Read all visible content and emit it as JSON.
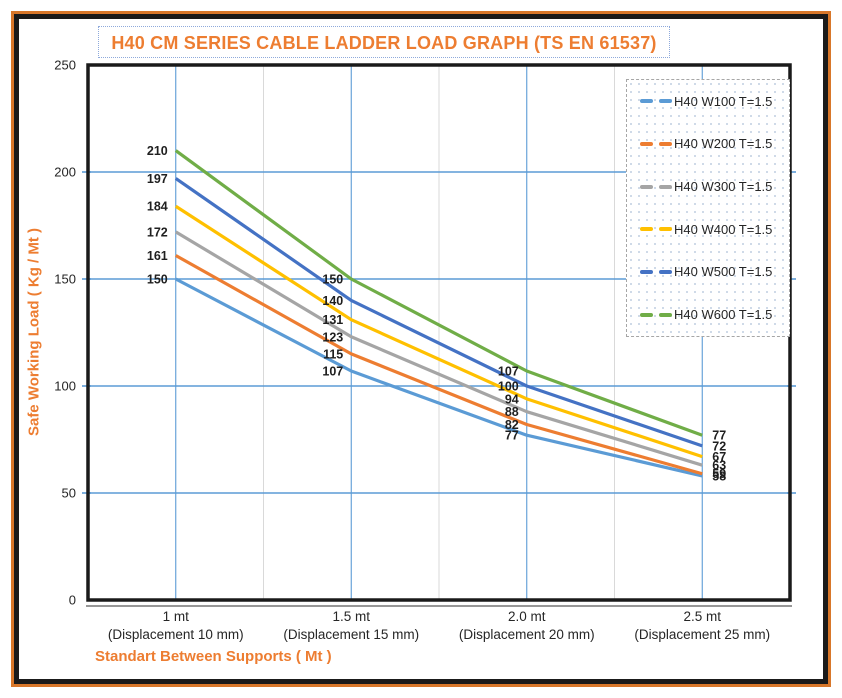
{
  "title": "H40 CM SERIES CABLE LADDER LOAD GRAPH (TS EN 61537)",
  "colors": {
    "accent": "#ED7D31",
    "grid_blue": "#5B9BD5",
    "minor_grid": "#D9D9D9",
    "frame_orange": "#D8772A",
    "frame_black": "#1A1A1A",
    "text": "#262626"
  },
  "chart_data": {
    "type": "line",
    "title": "H40 CM SERIES CABLE LADDER LOAD GRAPH (TS EN 61537)",
    "xlabel": "Standart Between Supports ( Mt )",
    "ylabel": "Safe Working Load ( Kg / Mt )",
    "categories": [
      "1 mt",
      "1.5 mt",
      "2.0 mt",
      "2.5 mt"
    ],
    "category_sublabels": [
      "(Displacement 10 mm)",
      "(Displacement 15 mm)",
      "(Displacement 20 mm)",
      "(Displacement 25 mm)"
    ],
    "ylim": [
      0,
      250
    ],
    "yticks": [
      0,
      50,
      100,
      150,
      200,
      250
    ],
    "grid": true,
    "legend_position": "top-right",
    "data_labels": true,
    "series": [
      {
        "name": "H40 W100 T=1.5",
        "color": "#5B9BD5",
        "values": [
          150,
          107,
          77,
          58
        ]
      },
      {
        "name": "H40 W200 T=1.5",
        "color": "#ED7D31",
        "values": [
          161,
          115,
          82,
          59
        ]
      },
      {
        "name": "H40 W300 T=1.5",
        "color": "#A5A5A5",
        "values": [
          172,
          123,
          88,
          63
        ]
      },
      {
        "name": "H40 W400 T=1.5",
        "color": "#FFC000",
        "values": [
          184,
          131,
          94,
          67
        ]
      },
      {
        "name": "H40 W500 T=1.5",
        "color": "#4472C4",
        "values": [
          197,
          140,
          100,
          72
        ]
      },
      {
        "name": "H40 W600 T=1.5",
        "color": "#70AD47",
        "values": [
          210,
          150,
          107,
          77
        ]
      }
    ]
  }
}
